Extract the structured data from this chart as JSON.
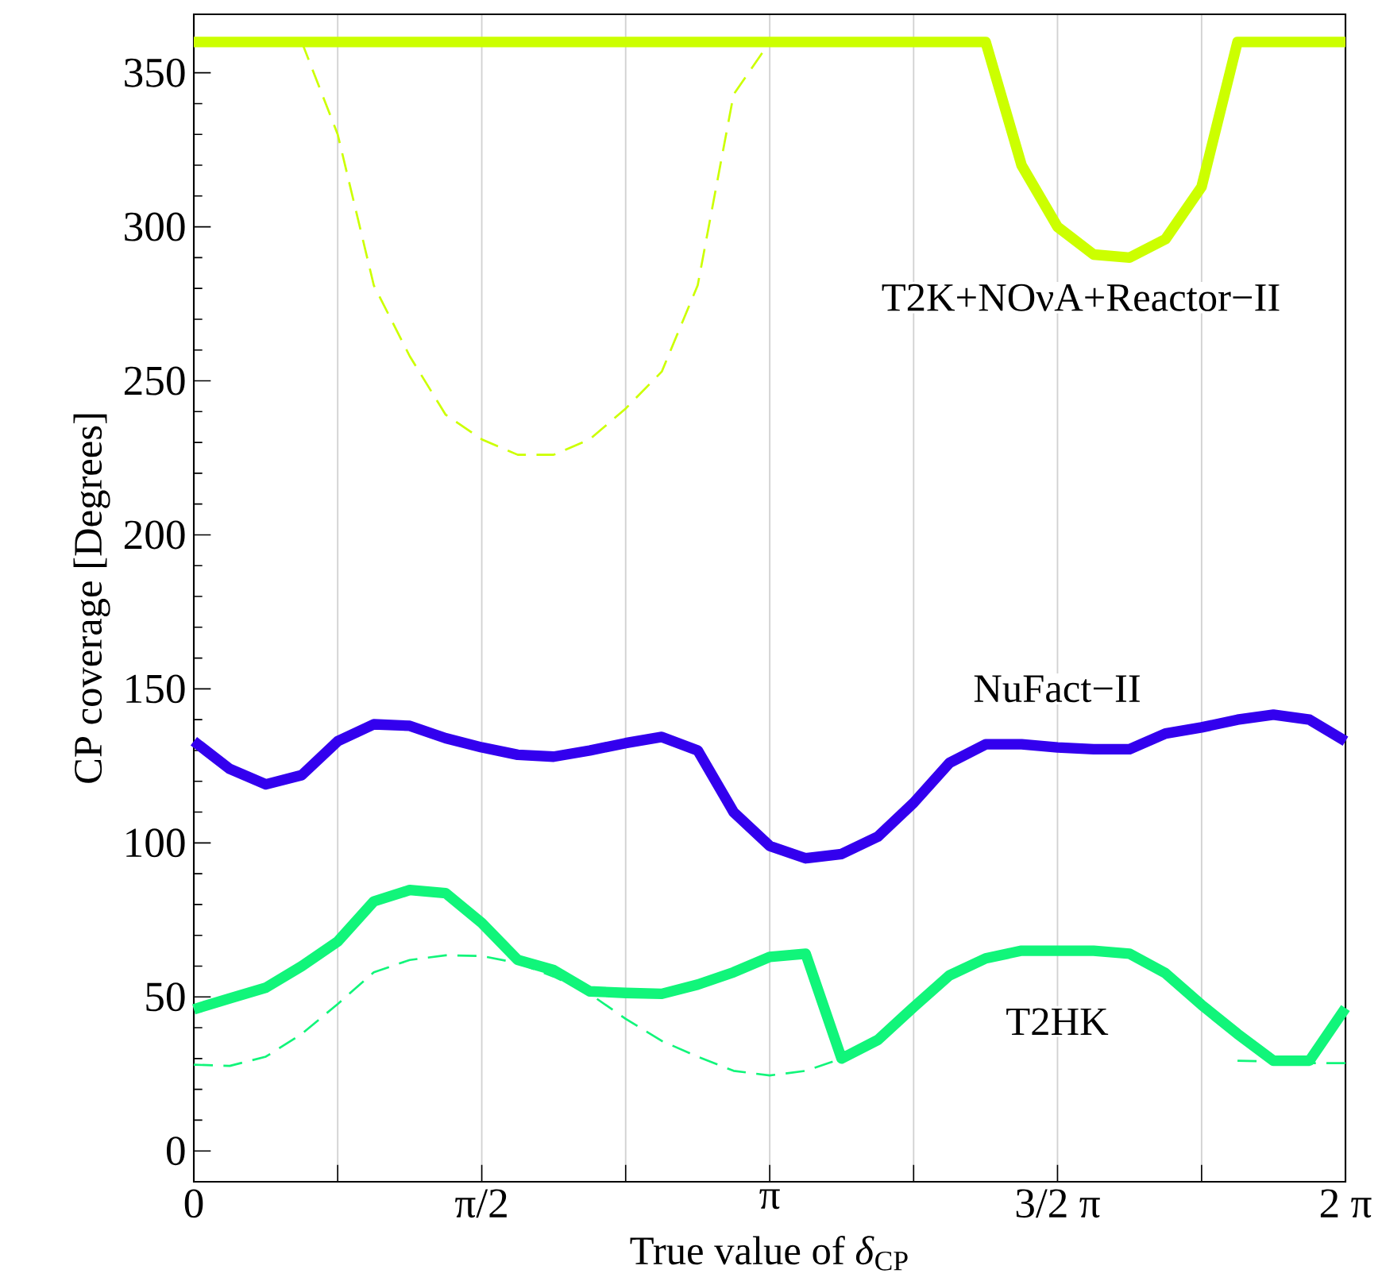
{
  "chart_data": {
    "type": "line",
    "xlabel": "True value of *δ*$_{CP}$",
    "ylabel": "CP coverage [Degrees]",
    "x": [
      0,
      0.196,
      0.393,
      0.589,
      0.785,
      0.982,
      1.178,
      1.374,
      1.571,
      1.767,
      1.963,
      2.16,
      2.356,
      2.553,
      2.749,
      2.945,
      3.142,
      3.338,
      3.534,
      3.731,
      3.927,
      4.123,
      4.32,
      4.516,
      4.712,
      4.909,
      5.105,
      5.301,
      5.498,
      5.694,
      5.89,
      6.087,
      6.283
    ],
    "series": [
      {
        "name": "T2K+NOνA+Reactor−II",
        "color": "#ccff00",
        "values": [
          360,
          360,
          360,
          360,
          360,
          360,
          360,
          360,
          360,
          360,
          360,
          360,
          360,
          360,
          360,
          360,
          360,
          360,
          360,
          360,
          360,
          360,
          360,
          320,
          300,
          291,
          290,
          296,
          313,
          360,
          360,
          360,
          360
        ]
      },
      {
        "color": "#ccff00",
        "line_style": "dashed",
        "values": [
          null,
          null,
          null,
          360,
          330,
          281,
          258,
          239,
          231,
          226,
          226,
          231,
          241,
          253,
          281,
          343,
          360,
          null,
          null,
          null,
          null,
          null,
          null,
          null,
          null,
          null,
          null,
          null,
          null,
          null,
          null,
          null,
          null
        ]
      },
      {
        "name": "NuFact−II",
        "color": "#3300ee",
        "values": [
          133,
          124,
          119,
          122,
          133,
          138.5,
          138,
          134,
          131,
          128.6,
          128,
          130,
          132.4,
          134.4,
          130,
          110,
          99,
          95,
          96.4,
          102,
          113,
          126,
          132,
          132,
          131,
          130.4,
          130.4,
          135.5,
          137.5,
          140,
          141.6,
          140,
          133
        ]
      },
      {
        "name": "T2HK",
        "color": "#11f57a",
        "values": [
          46,
          49.5,
          53,
          60,
          68,
          81,
          84.7,
          83.7,
          74,
          62,
          58.7,
          51.8,
          51.3,
          51,
          54,
          58,
          63,
          64,
          30,
          36,
          46.7,
          57,
          62.5,
          65,
          65,
          65,
          64,
          57.7,
          47.4,
          38,
          29.3,
          29.3,
          46.4
        ]
      },
      {
        "color": "#11f57a",
        "line_style": "dashed",
        "values": [
          28,
          27.6,
          30.6,
          38,
          47.7,
          58,
          62,
          63.5,
          63.3,
          61,
          56.6,
          51,
          42.9,
          35.7,
          30.6,
          26,
          24.5,
          26,
          30,
          null,
          null,
          null,
          null,
          null,
          null,
          null,
          null,
          null,
          null,
          29.3,
          29,
          28.5,
          28.5
        ]
      }
    ],
    "xlim": [
      0,
      6.283
    ],
    "xticks": [
      {
        "value": 0,
        "label": "0"
      },
      {
        "value": 0.785,
        "label": null
      },
      {
        "value": 1.571,
        "label": "π/2"
      },
      {
        "value": 2.356,
        "label": null
      },
      {
        "value": 3.142,
        "label": "π"
      },
      {
        "value": 3.927,
        "label": null
      },
      {
        "value": 4.712,
        "label": "3/2 π"
      },
      {
        "value": 5.498,
        "label": null
      },
      {
        "value": 6.283,
        "label": "2 π"
      }
    ],
    "ylim": [
      -10,
      369
    ],
    "yticks": [
      0,
      50,
      100,
      150,
      200,
      250,
      300,
      350
    ],
    "grid": "x",
    "legend": false
  }
}
